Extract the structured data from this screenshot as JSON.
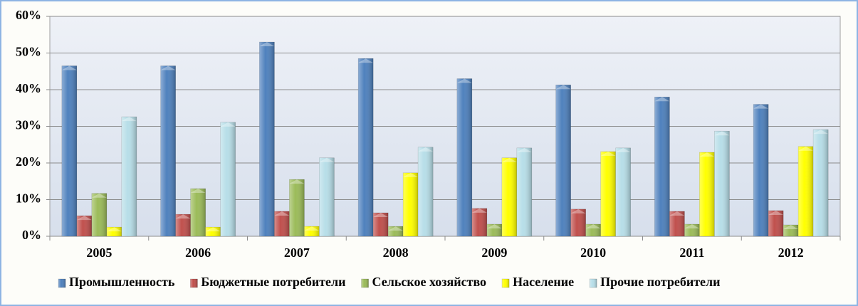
{
  "chart_data": {
    "type": "bar",
    "categories": [
      "2005",
      "2006",
      "2007",
      "2008",
      "2009",
      "2010",
      "2011",
      "2012"
    ],
    "series": [
      {
        "name": "Промышленность",
        "color": "#4f81bd",
        "values": [
          46.5,
          46.5,
          53,
          48.5,
          43,
          41.3,
          38,
          36
        ]
      },
      {
        "name": "Бюджетные потребители",
        "color": "#c0504d",
        "values": [
          5.6,
          6,
          6.8,
          6.4,
          7.6,
          7.4,
          6.8,
          7
        ]
      },
      {
        "name": "Сельское хозяйство",
        "color": "#9bbb59",
        "values": [
          11.7,
          13,
          15.5,
          2.7,
          3.3,
          3.3,
          3.3,
          3.1
        ]
      },
      {
        "name": "Население",
        "color": "#ffff00",
        "values": [
          2.5,
          2.5,
          2.7,
          17.3,
          21.4,
          23.1,
          22.9,
          24.5
        ]
      },
      {
        "name": "Прочие потребители",
        "color": "#b7dee8",
        "values": [
          32.6,
          31.1,
          21.4,
          24.3,
          24.1,
          24.1,
          28.7,
          29.1
        ]
      }
    ],
    "ylim": [
      0,
      60
    ],
    "yticks": [
      {
        "value": 0,
        "label": "0%"
      },
      {
        "value": 10,
        "label": "10%"
      },
      {
        "value": 20,
        "label": "20%"
      },
      {
        "value": 30,
        "label": "30%"
      },
      {
        "value": 40,
        "label": "40%"
      },
      {
        "value": 50,
        "label": "50%"
      },
      {
        "value": 60,
        "label": "60%"
      }
    ],
    "grid": true,
    "legend": "bottom"
  }
}
